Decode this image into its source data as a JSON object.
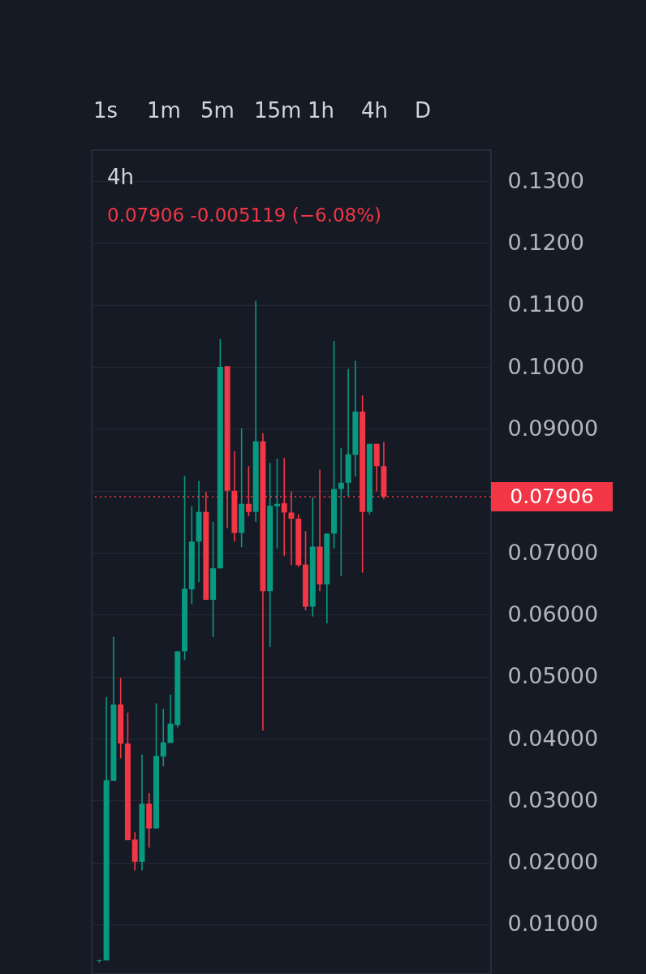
{
  "chart_data": {
    "type": "candlestick",
    "title": "4h",
    "subtitle": "0.07906 -0.005119 (−6.08%)",
    "annotations": [
      "1s",
      "1m",
      "5m",
      "15m",
      "1h",
      "4h",
      "D"
    ],
    "categories": [
      null,
      null,
      null,
      null,
      null,
      null,
      null,
      null,
      null,
      null,
      null,
      null,
      null,
      null,
      null,
      null,
      null,
      null,
      null,
      null,
      null,
      null,
      null,
      null,
      null,
      null,
      null,
      null,
      null,
      null,
      null,
      null,
      null,
      null,
      null,
      null,
      null,
      null,
      null,
      null,
      null,
      null,
      null,
      null,
      null,
      null,
      null,
      null,
      null,
      null,
      null,
      null,
      null,
      null,
      null
    ],
    "ohlc": [
      [
        0.0041,
        0.0043,
        0.0038,
        0.0042
      ],
      [
        0.0042,
        0.0467,
        0.0042,
        0.0333
      ],
      [
        0.0332,
        0.0564,
        0.0332,
        0.0455
      ],
      [
        0.0455,
        0.0498,
        0.0368,
        0.0392
      ],
      [
        0.0392,
        0.0442,
        0.0236,
        0.0236
      ],
      [
        0.0237,
        0.0249,
        0.0187,
        0.0201
      ],
      [
        0.0201,
        0.0374,
        0.0187,
        0.0295
      ],
      [
        0.0295,
        0.0312,
        0.0224,
        0.0255
      ],
      [
        0.0255,
        0.0457,
        0.0255,
        0.0372
      ],
      [
        0.0371,
        0.0448,
        0.0355,
        0.0394
      ],
      [
        0.0393,
        0.0471,
        0.0393,
        0.0424
      ],
      [
        0.0422,
        0.0541,
        0.0418,
        0.0541
      ],
      [
        0.0541,
        0.0824,
        0.0527,
        0.0642
      ],
      [
        0.0641,
        0.0775,
        0.0617,
        0.0718
      ],
      [
        0.0718,
        0.0816,
        0.0653,
        0.0766
      ],
      [
        0.0766,
        0.0798,
        0.0624,
        0.0624
      ],
      [
        0.0624,
        0.075,
        0.0564,
        0.0675
      ],
      [
        0.0675,
        0.1045,
        0.0675,
        0.1
      ],
      [
        0.1001,
        0.1001,
        0.074,
        0.08
      ],
      [
        0.08,
        0.0864,
        0.0718,
        0.0732
      ],
      [
        0.0732,
        0.0901,
        0.0709,
        0.0779
      ],
      [
        0.0779,
        0.084,
        0.0759,
        0.0766
      ],
      [
        0.0766,
        0.1107,
        0.075,
        0.088
      ],
      [
        0.088,
        0.0893,
        0.0413,
        0.0638
      ],
      [
        0.0638,
        0.0845,
        0.0548,
        0.0776
      ],
      [
        0.0775,
        0.0852,
        0.0707,
        0.0779
      ],
      [
        0.078,
        0.0853,
        0.0695,
        0.0765
      ],
      [
        0.0765,
        0.0799,
        0.068,
        0.0755
      ],
      [
        0.0755,
        0.0762,
        0.0677,
        0.068
      ],
      [
        0.0681,
        0.0735,
        0.0607,
        0.0613
      ],
      [
        0.0613,
        0.079,
        0.0597,
        0.071
      ],
      [
        0.071,
        0.0834,
        0.0638,
        0.0649
      ],
      [
        0.0649,
        0.0731,
        0.0586,
        0.0731
      ],
      [
        0.0731,
        0.1042,
        0.0707,
        0.0803
      ],
      [
        0.0803,
        0.0869,
        0.0662,
        0.0813
      ],
      [
        0.0813,
        0.0997,
        0.0791,
        0.0859
      ],
      [
        0.0858,
        0.101,
        0.0823,
        0.0928
      ],
      [
        0.0928,
        0.0954,
        0.0668,
        0.0766
      ],
      [
        0.0766,
        0.0876,
        0.0762,
        0.0876
      ],
      [
        0.0876,
        0.0876,
        0.0799,
        0.084
      ],
      [
        0.084,
        0.0879,
        0.0787,
        0.07906
      ],
      null,
      null,
      null,
      null,
      null,
      null,
      null,
      null,
      null,
      null,
      null,
      null,
      null,
      null
    ],
    "colors": [
      "#089981",
      "#089981",
      "#089981",
      "#f23645",
      "#f23645",
      "#f23645",
      "#089981",
      "#f23645",
      "#089981",
      "#089981",
      "#089981",
      "#089981",
      "#089981",
      "#089981",
      "#089981",
      "#f23645",
      "#089981",
      "#089981",
      "#f23645",
      "#f23645",
      "#089981",
      "#f23645",
      "#089981",
      "#f23645",
      "#089981",
      "#089981",
      "#f23645",
      "#f23645",
      "#f23645",
      "#f23645",
      "#089981",
      "#f23645",
      "#089981",
      "#089981",
      "#089981",
      "#089981",
      "#089981",
      "#f23645",
      "#089981",
      "#f23645",
      "#f23645",
      null,
      null,
      null,
      null,
      null,
      null,
      null,
      null,
      null,
      null,
      null,
      null,
      null,
      null
    ],
    "ylim": [
      0.002,
      0.135
    ],
    "yticks": [
      {
        "value": 0.01,
        "label": "0.01000"
      },
      {
        "value": 0.02,
        "label": "0.02000"
      },
      {
        "value": 0.03,
        "label": "0.03000"
      },
      {
        "value": 0.04,
        "label": "0.04000"
      },
      {
        "value": 0.05,
        "label": "0.05000"
      },
      {
        "value": 0.06,
        "label": "0.06000"
      },
      {
        "value": 0.07,
        "label": "0.07000"
      },
      {
        "value": 0.08,
        "label": null
      },
      {
        "value": 0.09,
        "label": "0.09000"
      },
      {
        "value": 0.1,
        "label": "0.1000"
      },
      {
        "value": 0.11,
        "label": "0.1100"
      },
      {
        "value": 0.12,
        "label": "0.1200"
      },
      {
        "value": 0.13,
        "label": "0.1300"
      }
    ],
    "ref_lines": [
      {
        "axis": "y",
        "value": 0.07906,
        "label": "0.07906",
        "color": "#f23645",
        "line_style": "dotted"
      }
    ],
    "grid": "y",
    "tick_labels": "y"
  }
}
